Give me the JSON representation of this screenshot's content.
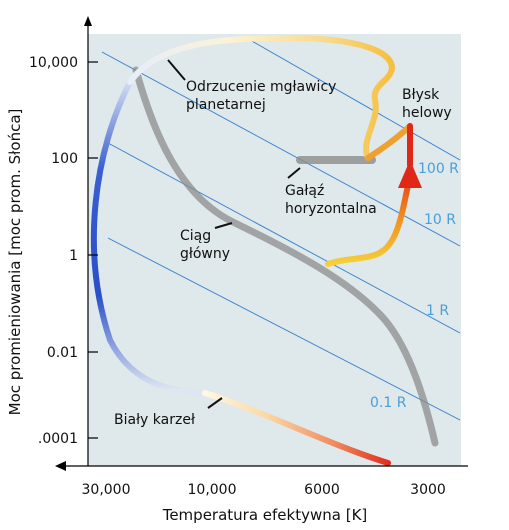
{
  "figure": {
    "y_axis_title": "Moc promieniowania [moc prom. Słońca]",
    "x_axis_title": "Temperatura efektywna [K]",
    "y_ticks": [
      "10,000",
      "100",
      "1",
      "0.01",
      ".0001"
    ],
    "x_ticks": [
      "30,000",
      "10,000",
      "6000",
      "3000"
    ],
    "radius_labels": [
      "100 R",
      "10 R",
      "1 R",
      "0.1 R"
    ],
    "annotations": {
      "planetary_nebula": [
        "Odrzucenie mgławicy",
        "planetarnej"
      ],
      "helium_flash": [
        "Błysk",
        "helowy"
      ],
      "horizontal_branch": [
        "Gałąź",
        "horyzontalna"
      ],
      "main_sequence": [
        "Ciąg",
        "główny"
      ],
      "white_dwarf": "Biały karzeł"
    },
    "colors": {
      "background": "#dfe8ea",
      "radius_lines": "#2f7fd0",
      "main_sequence_band": "#9a9a9a",
      "track_hot": "#2a4fc8",
      "track_yellow": "#f5d23a",
      "track_orange": "#f08a20",
      "track_red": "#e02818"
    }
  }
}
